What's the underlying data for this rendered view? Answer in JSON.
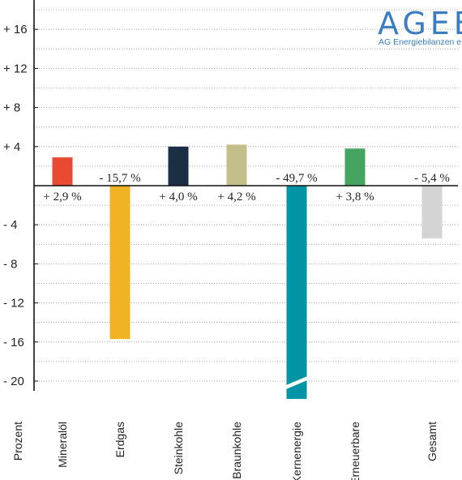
{
  "logo": {
    "name": "AGEB",
    "subtitle": "AG Energiebilanzen e.V.",
    "color": "#3a7dc2"
  },
  "chart_data": {
    "type": "bar",
    "ylabel": "Prozent",
    "ylim": [
      -21,
      18
    ],
    "yticks": [
      16,
      12,
      8,
      4,
      0,
      -4,
      -8,
      -12,
      -16,
      -20
    ],
    "ytick_labels": [
      "+ 16",
      "+ 12",
      "+ 8",
      "+ 4",
      "",
      "- 4",
      "- 8",
      "- 12",
      "- 16",
      "- 20"
    ],
    "grid": true,
    "categories": [
      "Mineralöl",
      "Erdgas",
      "Steinkohle",
      "Braunkohle",
      "Kernenergie",
      "Erneuerbare",
      "Gesamt"
    ],
    "values": [
      2.9,
      -15.7,
      4.0,
      4.2,
      -49.7,
      3.8,
      -5.4
    ],
    "value_labels": [
      "+ 2,9 %",
      "- 15,7 %",
      "+ 4,0 %",
      "+ 4,2 %",
      "- 49,7 %",
      "+ 3,8 %",
      "- 5,4 %"
    ],
    "colors": [
      "#e84a32",
      "#f0b323",
      "#1c2e44",
      "#c4bf8a",
      "#0094a4",
      "#45a460",
      "#d4d4d4"
    ],
    "truncated": [
      false,
      false,
      false,
      false,
      true,
      false,
      false
    ]
  }
}
